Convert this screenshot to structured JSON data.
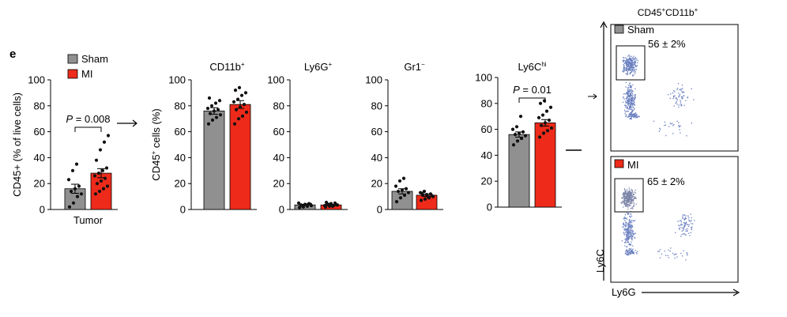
{
  "panel_label": "e",
  "colors": {
    "sham": "#909090",
    "mi": "#ee2a1a",
    "dot": "#111111",
    "flow_dot": "#6a7fc0"
  },
  "legend": {
    "items": [
      {
        "label": "Sham",
        "color": "#909090"
      },
      {
        "label": "MI",
        "color": "#ee2a1a"
      }
    ]
  },
  "flow_label": "CD45+CD11b+",
  "chart_data": [
    {
      "id": "tumor",
      "type": "bar",
      "title": "",
      "xlabel": "Tumor",
      "ylabel": "CD45+ (% of live cells)",
      "ylim": [
        0,
        100
      ],
      "yticks": [
        0,
        20,
        40,
        60,
        80,
        100
      ],
      "categories": [
        "Sham",
        "MI"
      ],
      "series": [
        {
          "name": "Sham",
          "value": 16,
          "sem": 3.5,
          "points": [
            2,
            5,
            10,
            12,
            14,
            16,
            18,
            23,
            30,
            35
          ]
        },
        {
          "name": "MI",
          "value": 28,
          "sem": 3.5,
          "points": [
            12,
            14,
            16,
            18,
            20,
            22,
            24,
            26,
            28,
            30,
            32,
            38,
            46,
            52,
            57
          ]
        }
      ],
      "annotation": "P = 0.008"
    },
    {
      "id": "cd11b",
      "type": "bar",
      "title": "CD11b+",
      "xlabel": "",
      "ylabel": "CD45+ cells (%)",
      "ylim": [
        0,
        100
      ],
      "yticks": [
        0,
        20,
        40,
        60,
        80,
        100
      ],
      "categories": [
        "Sham",
        "MI"
      ],
      "series": [
        {
          "name": "Sham",
          "value": 76,
          "sem": 2.5,
          "points": [
            66,
            69,
            71,
            73,
            74,
            76,
            77,
            78,
            80,
            82,
            84,
            86
          ]
        },
        {
          "name": "MI",
          "value": 81,
          "sem": 3,
          "points": [
            66,
            70,
            72,
            75,
            77,
            79,
            81,
            83,
            85,
            88,
            90,
            92,
            94
          ]
        }
      ],
      "annotation": ""
    },
    {
      "id": "ly6g",
      "type": "bar",
      "title": "Ly6G+",
      "xlabel": "",
      "ylabel": "",
      "ylim": [
        0,
        100
      ],
      "yticks": [
        0,
        20,
        40,
        60,
        80,
        100
      ],
      "categories": [
        "Sham",
        "MI"
      ],
      "series": [
        {
          "name": "Sham",
          "value": 3.5,
          "sem": 0.5,
          "points": [
            1.5,
            2,
            2.5,
            3,
            3.5,
            4,
            4.5,
            5,
            2.5,
            3.5,
            4
          ]
        },
        {
          "name": "MI",
          "value": 3.5,
          "sem": 0.5,
          "points": [
            2,
            2.5,
            3,
            3.5,
            4,
            4.5,
            5,
            3,
            4,
            2.5,
            3.5,
            5.5
          ]
        }
      ],
      "annotation": ""
    },
    {
      "id": "gr1",
      "type": "bar",
      "title": "Gr1−",
      "xlabel": "",
      "ylabel": "",
      "ylim": [
        0,
        100
      ],
      "yticks": [
        0,
        20,
        40,
        60,
        80,
        100
      ],
      "categories": [
        "Sham",
        "MI"
      ],
      "series": [
        {
          "name": "Sham",
          "value": 14,
          "sem": 2,
          "points": [
            6,
            9,
            11,
            13,
            14,
            15,
            16,
            18,
            22,
            24
          ]
        },
        {
          "name": "MI",
          "value": 11,
          "sem": 1,
          "points": [
            7,
            8,
            9,
            10,
            11,
            11.5,
            12,
            13,
            14,
            9.5,
            10.5,
            12.5
          ]
        }
      ],
      "annotation": ""
    },
    {
      "id": "ly6chi",
      "type": "bar",
      "title": "Ly6Chi",
      "xlabel": "",
      "ylabel": "",
      "ylim": [
        0,
        100
      ],
      "yticks": [
        0,
        20,
        40,
        60,
        80,
        100
      ],
      "categories": [
        "Sham",
        "MI"
      ],
      "series": [
        {
          "name": "Sham",
          "value": 56,
          "sem": 2,
          "points": [
            48,
            51,
            53,
            55,
            56,
            57,
            58,
            60,
            62,
            70
          ]
        },
        {
          "name": "MI",
          "value": 65,
          "sem": 2.5,
          "points": [
            54,
            57,
            59,
            61,
            63,
            65,
            67,
            69,
            71,
            74,
            77,
            80,
            82
          ]
        }
      ],
      "annotation": "P = 0.01"
    }
  ],
  "flow": {
    "title": "CD45+CD11b+",
    "x_axis_label": "Ly6G",
    "y_axis_label": "Ly6C",
    "panels": [
      {
        "label": "Sham",
        "percent": "56 ± 2%"
      },
      {
        "label": "MI",
        "percent": "65 ± 2%"
      }
    ]
  }
}
